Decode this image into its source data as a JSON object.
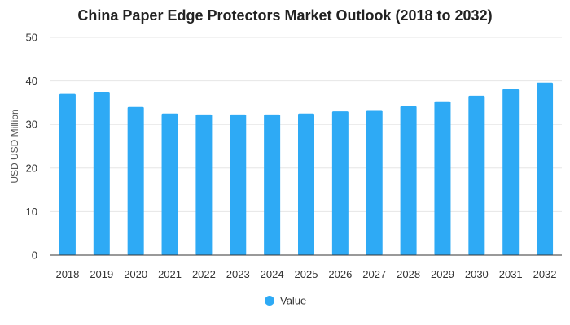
{
  "chart_data": {
    "type": "bar",
    "title": "China Paper Edge Protectors Market Outlook (2018 to 2032)",
    "xlabel": "",
    "ylabel": "USD USD Million",
    "ylim": [
      0,
      50
    ],
    "yticks": [
      0,
      10,
      20,
      30,
      40,
      50
    ],
    "grid": true,
    "legend_position": "bottom",
    "categories": [
      "2018",
      "2019",
      "2020",
      "2021",
      "2022",
      "2023",
      "2024",
      "2025",
      "2026",
      "2027",
      "2028",
      "2029",
      "2030",
      "2031",
      "2032"
    ],
    "series": [
      {
        "name": "Value",
        "color": "#2eaaf5",
        "values": [
          37.0,
          37.5,
          34.0,
          32.5,
          32.3,
          32.3,
          32.3,
          32.5,
          33.0,
          33.3,
          34.2,
          35.3,
          36.6,
          38.1,
          39.6
        ]
      }
    ]
  }
}
